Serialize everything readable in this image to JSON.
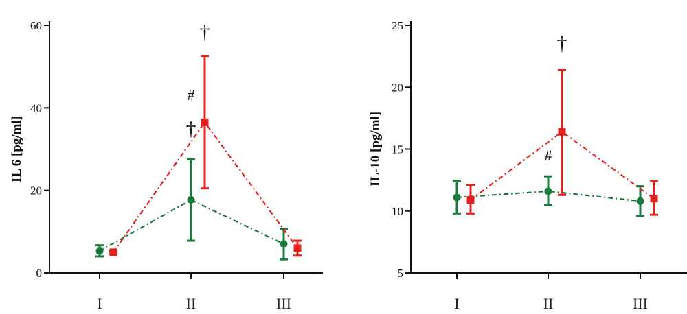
{
  "chart_data": [
    {
      "type": "line",
      "ylabel": "IL 6 [pg/ml]",
      "categories": [
        "I",
        "II",
        "III"
      ],
      "ylim": [
        0,
        60
      ],
      "yticks": [
        0,
        20,
        40,
        60
      ],
      "grid": false,
      "colors": {
        "green": "#1a7a3c",
        "red": "#e5211f"
      },
      "series": [
        {
          "color": "green",
          "marker": "circle",
          "values": [
            5.3,
            17.7,
            7.0
          ],
          "err_low": [
            4.0,
            7.8,
            3.3
          ],
          "err_high": [
            6.7,
            27.5,
            10.7
          ]
        },
        {
          "color": "red",
          "marker": "square",
          "values": [
            5.0,
            36.5,
            6.0
          ],
          "err_low": [
            4.6,
            20.5,
            4.2
          ],
          "err_high": [
            5.4,
            52.6,
            7.8
          ]
        }
      ],
      "annotations": [
        {
          "text": "†",
          "category": "II",
          "series": "red",
          "y": 58.5
        },
        {
          "text": "#",
          "category": "II",
          "series": "green",
          "y": 43.2
        },
        {
          "text": "†",
          "category": "II",
          "series": "green",
          "y": 35.0
        }
      ]
    },
    {
      "type": "line",
      "ylabel": "IL-10 [pg/ml]",
      "categories": [
        "I",
        "II",
        "III"
      ],
      "ylim": [
        5,
        25
      ],
      "yticks": [
        5,
        10,
        15,
        20,
        25
      ],
      "grid": false,
      "colors": {
        "green": "#1a7a3c",
        "red": "#e5211f"
      },
      "series": [
        {
          "color": "green",
          "marker": "circle",
          "values": [
            11.1,
            11.6,
            10.8
          ],
          "err_low": [
            9.8,
            10.5,
            9.6
          ],
          "err_high": [
            12.4,
            12.8,
            12.0
          ]
        },
        {
          "color": "red",
          "marker": "square",
          "values": [
            10.9,
            16.4,
            11.0
          ],
          "err_low": [
            9.8,
            11.3,
            9.7
          ],
          "err_high": [
            12.1,
            21.4,
            12.4
          ]
        }
      ],
      "annotations": [
        {
          "text": "†",
          "category": "II",
          "series": "red",
          "y": 23.6
        },
        {
          "text": "#",
          "category": "II",
          "series": "green",
          "y": 14.5
        }
      ]
    }
  ]
}
